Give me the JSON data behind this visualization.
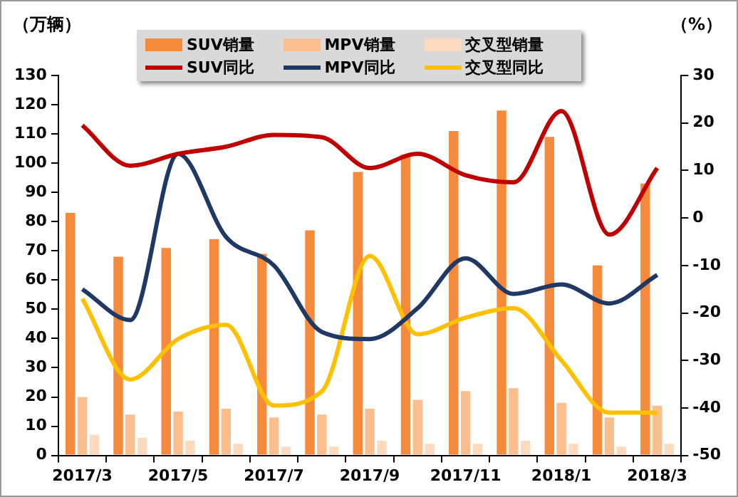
{
  "chart_data": {
    "type": "bar",
    "ylabel": "（万辆）",
    "y2label": "（%）",
    "categories": [
      "2017/3",
      null,
      "2017/5",
      null,
      "2017/7",
      null,
      "2017/9",
      null,
      "2017/11",
      null,
      "2018/1",
      null,
      "2018/3"
    ],
    "series": [
      {
        "name": "SUV销量",
        "color": "#f58a3c",
        "values": [
          83,
          68,
          71,
          74,
          69,
          77,
          97,
          103,
          111,
          118,
          109,
          65,
          93
        ]
      },
      {
        "name": "MPV销量",
        "color": "#fbbf8f",
        "values": [
          20,
          14,
          15,
          16,
          13,
          14,
          16,
          19,
          22,
          23,
          18,
          13,
          17
        ]
      },
      {
        "name": "交叉型销量",
        "color": "#fdd9bd",
        "values": [
          7,
          6,
          5,
          4,
          3,
          3,
          5,
          4,
          4,
          5,
          4,
          3,
          4
        ]
      },
      {
        "name": "SUV同比",
        "type": "line",
        "axis": "y2",
        "color": "#c00000",
        "values": [
          19.5,
          11,
          13.5,
          15,
          17.5,
          17,
          10.5,
          13.5,
          9,
          7.5,
          22.5,
          -3.5,
          10.5
        ]
      },
      {
        "name": "MPV同比",
        "type": "line",
        "axis": "y2",
        "color": "#1f3864",
        "values": [
          -15,
          -21.5,
          13.5,
          -4,
          -10,
          -24,
          -25.5,
          -19,
          -8.5,
          -16,
          -14,
          -18,
          -12
        ]
      },
      {
        "name": "交叉型同比",
        "type": "line",
        "axis": "y2",
        "color": "#ffc000",
        "values": [
          -17,
          -34,
          -25.5,
          -22.5,
          -39.5,
          -36.5,
          -8,
          -24.5,
          -21,
          -19,
          -30,
          -41,
          -41
        ]
      }
    ],
    "ylim": [
      0,
      130
    ],
    "yticks": [
      0,
      10,
      20,
      30,
      40,
      50,
      60,
      70,
      80,
      90,
      100,
      110,
      120,
      130
    ],
    "y2lim": [
      -50,
      30
    ],
    "y2ticks": [
      -50,
      -40,
      -30,
      -20,
      -10,
      0,
      10,
      20,
      30
    ],
    "grid": false,
    "legend": "top",
    "marker": "none",
    "line_style": "solid"
  }
}
